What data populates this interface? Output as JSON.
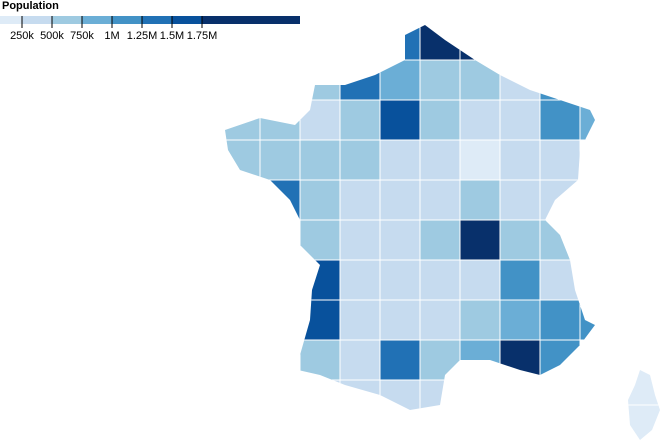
{
  "legend": {
    "title": "Population",
    "ticks": [
      {
        "value": 250000,
        "label": "250k"
      },
      {
        "value": 500000,
        "label": "500k"
      },
      {
        "value": 750000,
        "label": "750k"
      },
      {
        "value": 1000000,
        "label": "1M"
      },
      {
        "value": 1250000,
        "label": "1.25M"
      },
      {
        "value": 1500000,
        "label": "1.5M"
      },
      {
        "value": 1750000,
        "label": "1.75M"
      }
    ],
    "colors": [
      "#deebf7",
      "#c6dbef",
      "#9ecae1",
      "#6baed6",
      "#4292c6",
      "#2171b5",
      "#08519c",
      "#08306b"
    ]
  },
  "regions": {
    "values": [
      1400000,
      2600000,
      2600000,
      500000,
      1250000,
      900000,
      550000,
      500000,
      300000,
      1100000,
      700000,
      600000,
      400000,
      600000,
      1600000,
      500000,
      300000,
      250000,
      1100000,
      800000,
      500000,
      700000,
      550000,
      650000,
      400000,
      350000,
      200000,
      400000,
      350000,
      1300000,
      700000,
      350000,
      300000,
      300000,
      500000,
      300000,
      450000,
      600000,
      400000,
      300000,
      550000,
      1800000,
      700000,
      500000,
      1500000,
      350000,
      250000,
      300000,
      400000,
      1200000,
      450000,
      1500000,
      400000,
      250000,
      300000,
      550000,
      800000,
      1100000,
      1100000,
      600000,
      400000,
      1300000,
      700000,
      900000,
      2000000,
      1000000,
      400000,
      300000,
      250000,
      450000,
      750000,
      160000,
      180000
    ]
  }
}
